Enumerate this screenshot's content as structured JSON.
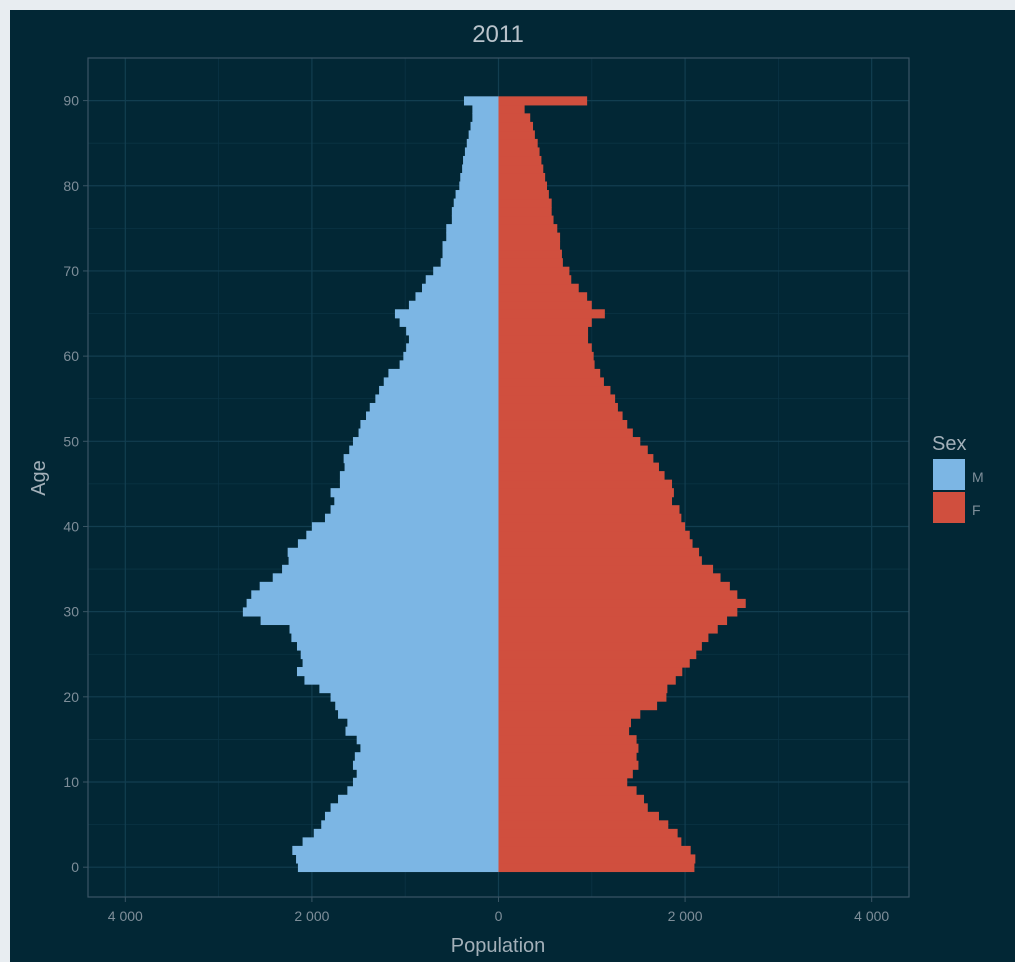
{
  "chart_data": {
    "type": "bar",
    "title": "2011",
    "xlabel": "Population",
    "ylabel": "Age",
    "xlim": [
      -4400,
      4400
    ],
    "ylim": [
      -3.5,
      95
    ],
    "x_ticks": [
      -4000,
      -2000,
      0,
      2000,
      4000
    ],
    "x_tick_labels": [
      "4 000",
      "2 000",
      "0",
      "2 000",
      "4 000"
    ],
    "y_ticks": [
      0,
      10,
      20,
      30,
      40,
      50,
      60,
      70,
      80,
      90
    ],
    "y_tick_labels": [
      "0",
      "10",
      "20",
      "30",
      "40",
      "50",
      "60",
      "70",
      "80",
      "90"
    ],
    "grid": true,
    "legend": {
      "title": "Sex",
      "placement": "right",
      "entries": [
        {
          "label": "M",
          "color": "#7cb6e4"
        },
        {
          "label": "F",
          "color": "#d04f3e"
        }
      ]
    },
    "ages": [
      0,
      1,
      2,
      3,
      4,
      5,
      6,
      7,
      8,
      9,
      10,
      11,
      12,
      13,
      14,
      15,
      16,
      17,
      18,
      19,
      20,
      21,
      22,
      23,
      24,
      25,
      26,
      27,
      28,
      29,
      30,
      31,
      32,
      33,
      34,
      35,
      36,
      37,
      38,
      39,
      40,
      41,
      42,
      43,
      44,
      45,
      46,
      47,
      48,
      49,
      50,
      51,
      52,
      53,
      54,
      55,
      56,
      57,
      58,
      59,
      60,
      61,
      62,
      63,
      64,
      65,
      66,
      67,
      68,
      69,
      70,
      71,
      72,
      73,
      74,
      75,
      76,
      77,
      78,
      79,
      80,
      81,
      82,
      83,
      84,
      85,
      86,
      87,
      88,
      89,
      90
    ],
    "series": [
      {
        "name": "M",
        "color": "#7cb6e4",
        "values": [
          2150,
          2170,
          2210,
          2100,
          1980,
          1900,
          1860,
          1800,
          1720,
          1620,
          1560,
          1520,
          1560,
          1540,
          1480,
          1520,
          1640,
          1620,
          1720,
          1750,
          1800,
          1920,
          2080,
          2160,
          2100,
          2120,
          2160,
          2220,
          2240,
          2550,
          2740,
          2700,
          2650,
          2560,
          2420,
          2320,
          2250,
          2260,
          2150,
          2060,
          2000,
          1860,
          1800,
          1760,
          1800,
          1700,
          1700,
          1650,
          1660,
          1600,
          1560,
          1500,
          1480,
          1420,
          1380,
          1320,
          1280,
          1230,
          1180,
          1060,
          1020,
          990,
          960,
          990,
          1060,
          1110,
          960,
          890,
          820,
          780,
          700,
          620,
          600,
          600,
          560,
          560,
          500,
          500,
          480,
          460,
          420,
          410,
          390,
          380,
          360,
          340,
          320,
          300,
          280,
          280,
          370
        ]
      },
      {
        "name": "F",
        "color": "#d04f3e",
        "values": [
          2100,
          2110,
          2060,
          1960,
          1920,
          1820,
          1720,
          1600,
          1560,
          1480,
          1380,
          1440,
          1500,
          1480,
          1500,
          1480,
          1400,
          1420,
          1520,
          1700,
          1800,
          1810,
          1900,
          1970,
          2050,
          2120,
          2180,
          2250,
          2350,
          2450,
          2560,
          2650,
          2560,
          2480,
          2380,
          2300,
          2180,
          2150,
          2080,
          2050,
          2000,
          1960,
          1940,
          1860,
          1880,
          1860,
          1780,
          1720,
          1660,
          1600,
          1520,
          1440,
          1380,
          1330,
          1280,
          1250,
          1200,
          1130,
          1090,
          1030,
          1020,
          1000,
          960,
          960,
          1000,
          1140,
          1000,
          950,
          860,
          780,
          760,
          690,
          680,
          660,
          660,
          630,
          590,
          570,
          570,
          540,
          520,
          500,
          480,
          460,
          440,
          420,
          390,
          370,
          340,
          280,
          950
        ]
      }
    ]
  }
}
